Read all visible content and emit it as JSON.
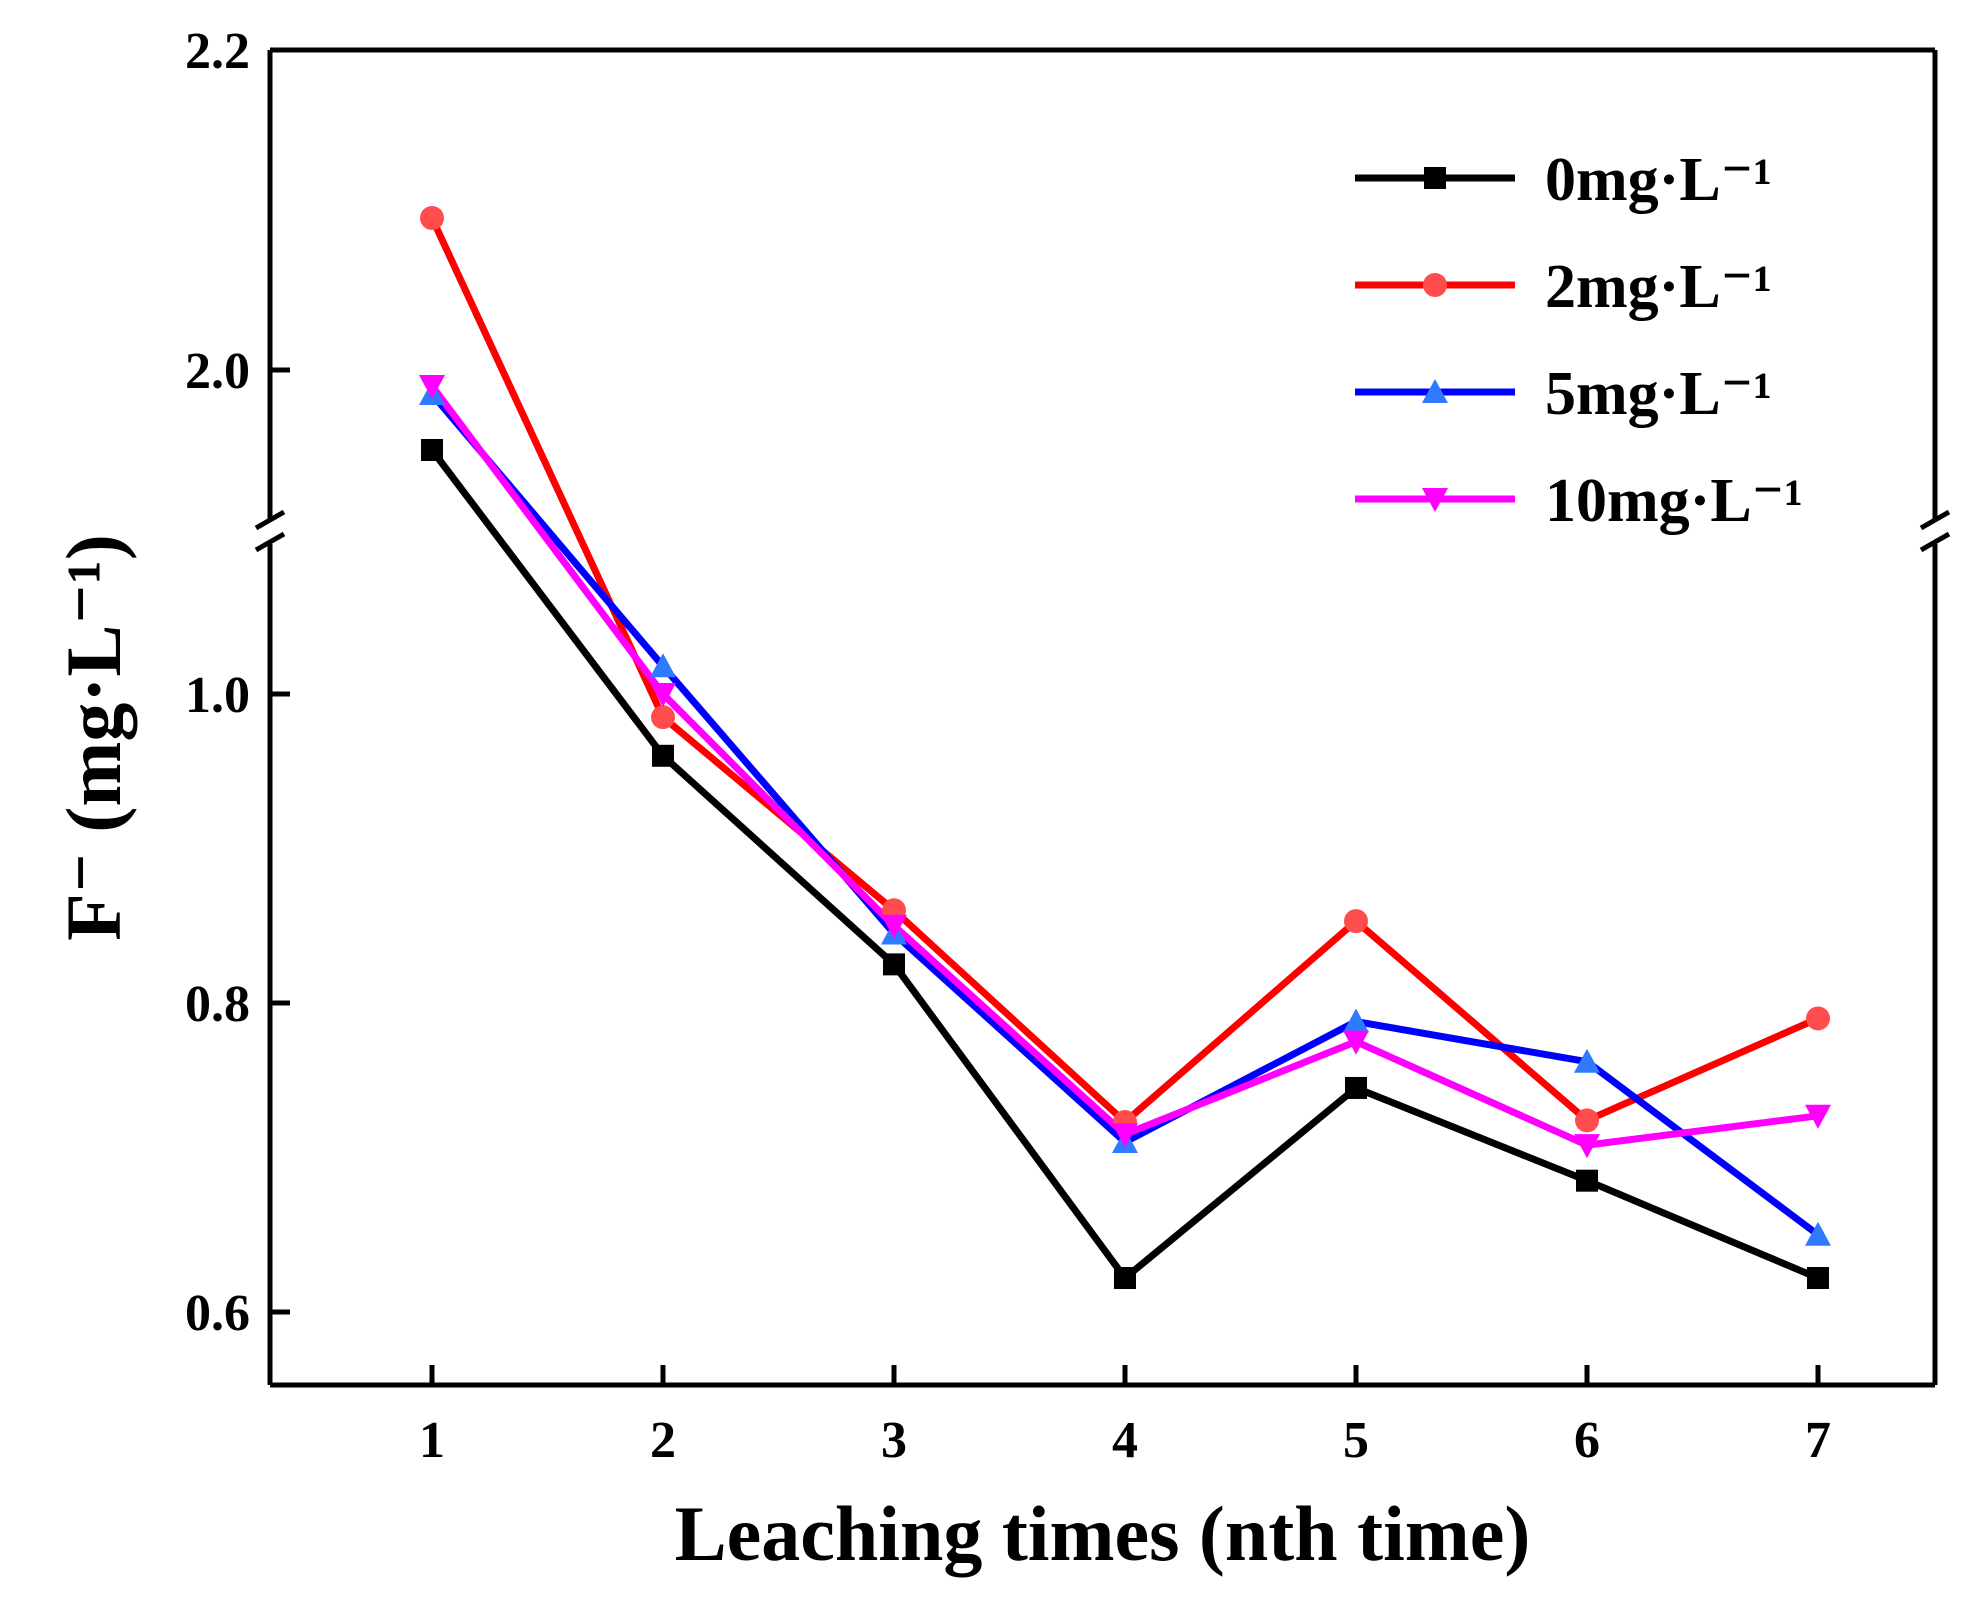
{
  "chart_data": {
    "type": "line",
    "title": "",
    "xlabel": "Leaching times (nth time)",
    "ylabel": "F⁻ (mg·L⁻¹)",
    "x": [
      1,
      2,
      3,
      4,
      5,
      6,
      7
    ],
    "x_ticks": [
      "1",
      "2",
      "3",
      "4",
      "5",
      "6",
      "7"
    ],
    "y_ticks": [
      "0.6",
      "0.8",
      "1.0",
      "2.0",
      "2.2"
    ],
    "axis_break": {
      "lower_range": [
        0.55,
        1.1
      ],
      "upper_range": [
        1.9,
        2.2
      ]
    },
    "legend_position": "top-right",
    "series": [
      {
        "name": "0mg·L⁻¹",
        "color": "#000000",
        "marker": "square",
        "values": [
          1.95,
          0.96,
          0.825,
          0.622,
          0.745,
          0.685,
          0.622
        ]
      },
      {
        "name": "2mg·L⁻¹",
        "color": "#ff0000",
        "marker": "circle",
        "values": [
          2.095,
          0.985,
          0.86,
          0.723,
          0.853,
          0.724,
          0.79
        ]
      },
      {
        "name": "5mg·L⁻¹",
        "color": "#0000ff",
        "marker": "triangle-up",
        "values": [
          1.985,
          1.018,
          0.845,
          0.71,
          0.788,
          0.762,
          0.65
        ]
      },
      {
        "name": "10mg·L⁻¹",
        "color": "#ff00ff",
        "marker": "triangle-down",
        "values": [
          1.99,
          1.0,
          0.85,
          0.715,
          0.775,
          0.708,
          0.727
        ]
      }
    ]
  },
  "marker_colors": {
    "0mg·L⁻¹": "#000000",
    "2mg·L⁻¹": "#ff4d4d",
    "5mg·L⁻¹": "#2e7bff",
    "10mg·L⁻¹": "#ff00ff"
  }
}
